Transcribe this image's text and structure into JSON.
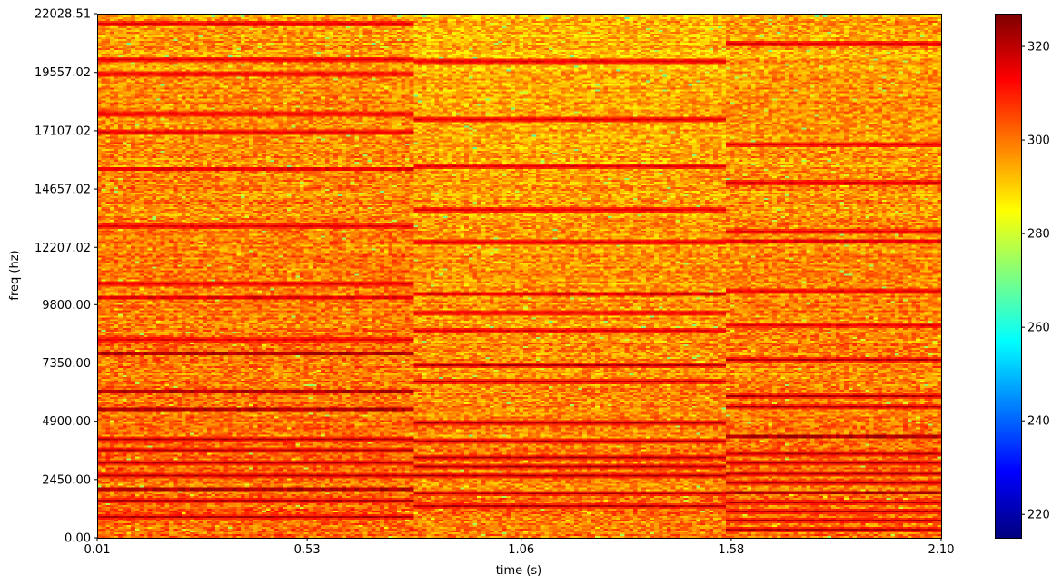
{
  "chart_data": {
    "type": "heatmap",
    "title": "",
    "xlabel": "time (s)",
    "ylabel": "freq (hz)",
    "xlim": [
      0.01,
      2.1
    ],
    "ylim": [
      0.0,
      22028.51
    ],
    "x_ticks": [
      0.01,
      0.53,
      1.06,
      1.58,
      2.1
    ],
    "x_tick_labels": [
      "0.01",
      "0.53",
      "1.06",
      "1.58",
      "2.10"
    ],
    "y_ticks": [
      0.0,
      2450.0,
      4900.0,
      7350.0,
      9800.0,
      12207.02,
      14657.02,
      17107.02,
      19557.02,
      22028.51
    ],
    "y_tick_labels": [
      "0.00",
      "2450.00",
      "4900.00",
      "7350.00",
      "9800.00",
      "12207.02",
      "14657.02",
      "17107.02",
      "19557.02",
      "22028.51"
    ],
    "colormap": "jet",
    "colorbar": {
      "min": 215,
      "max": 327,
      "ticks": [
        220,
        240,
        260,
        280,
        300,
        320
      ],
      "tick_labels": [
        "220",
        "240",
        "260",
        "280",
        "300",
        "320"
      ]
    },
    "segments": [
      {
        "t_start": 0.01,
        "t_end": 0.79,
        "base_level": 298,
        "bands_hz": [
          900,
          1550,
          2050,
          2650,
          3150,
          3700,
          4150,
          5400,
          6150,
          7750,
          8300,
          10100,
          10700,
          13100,
          15500,
          17050,
          17800,
          19500,
          20100,
          21600
        ]
      },
      {
        "t_start": 0.79,
        "t_end": 1.57,
        "base_level": 296,
        "bands_hz": [
          1350,
          1850,
          2600,
          3000,
          3400,
          4050,
          4850,
          6600,
          7250,
          8700,
          9450,
          10250,
          12400,
          13800,
          15600,
          17600,
          20000
        ]
      },
      {
        "t_start": 1.57,
        "t_end": 2.1,
        "base_level": 297,
        "bands_hz": [
          350,
          700,
          1100,
          1500,
          1900,
          2300,
          2700,
          3150,
          3550,
          4250,
          5500,
          5950,
          7500,
          8900,
          10350,
          12450,
          12850,
          14950,
          16500,
          20800
        ]
      }
    ]
  }
}
